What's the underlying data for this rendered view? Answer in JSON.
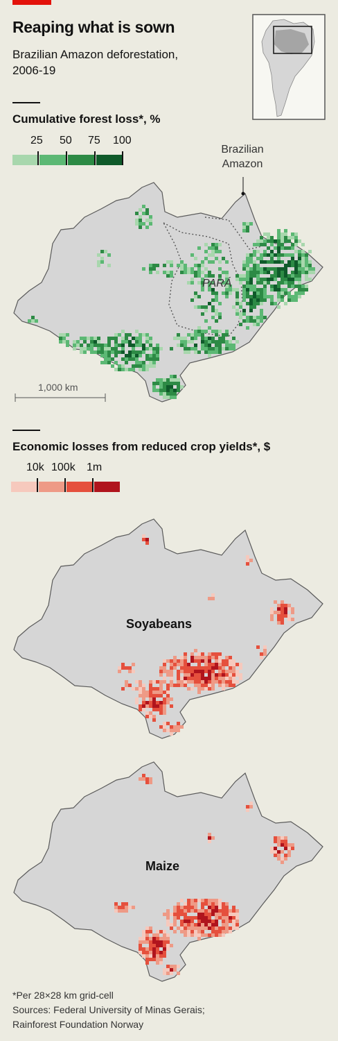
{
  "title": "Reaping what is sown",
  "subtitle": "Brazilian Amazon deforestation, 2006-19",
  "forest_legend": {
    "label": "Cumulative forest loss*, %",
    "values": [
      "25",
      "50",
      "75",
      "100"
    ],
    "colors": [
      "#a8d7ad",
      "#5cb874",
      "#2d8a45",
      "#0f5a2a"
    ]
  },
  "forest_map": {
    "amazon_label": "Brazilian\nAmazon",
    "region_label": "PARÁ",
    "scale_label": "1,000 km"
  },
  "crop_legend": {
    "label": "Economic losses from reduced crop yields*, $",
    "values": [
      "10k",
      "100k",
      "1m"
    ],
    "colors": [
      "#f6c9bd",
      "#ee9a86",
      "#e5503d",
      "#b0141d"
    ]
  },
  "soy_map": {
    "label": "Soyabeans"
  },
  "maize_map": {
    "label": "Maize"
  },
  "notes": {
    "footnote": "*Per 28×28 km grid-cell",
    "sources_line1": "Sources: Federal University of Minas Gerais;",
    "sources_line2": "Rainforest Foundation Norway"
  },
  "colors": {
    "map_fill": "#d6d6d6",
    "map_stroke": "#5a5a5a",
    "accent": "#e3120b"
  }
}
